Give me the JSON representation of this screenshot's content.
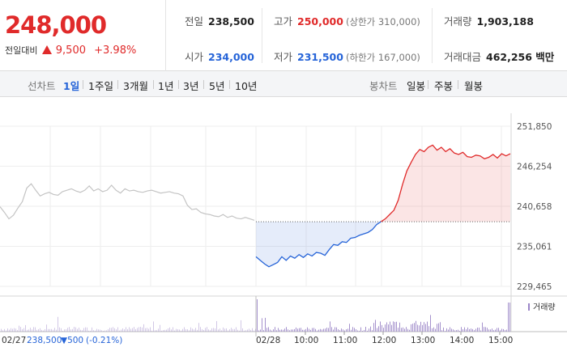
{
  "summary": {
    "current_price": "248,000",
    "change_label": "전일대비",
    "change_value": "9,500",
    "change_pct": "+3.98%",
    "prev_close": {
      "label": "전일",
      "value": "238,500"
    },
    "high": {
      "label": "고가",
      "value": "250,000",
      "sub": "(상한가 310,000)"
    },
    "volume": {
      "label": "거래량",
      "value": "1,903,188"
    },
    "open": {
      "label": "시가",
      "value": "234,000"
    },
    "low": {
      "label": "저가",
      "value": "231,500",
      "sub": "(하한가 167,000)"
    },
    "trade_amount": {
      "label": "거래대금",
      "value": "462,256 백만"
    }
  },
  "period_bar": {
    "line_chart_label": "선차트",
    "line_periods": [
      "1일",
      "1주일",
      "3개월",
      "1년",
      "3년",
      "5년",
      "10년"
    ],
    "active_period": "1일",
    "candle_chart_label": "봉차트",
    "candle_periods": [
      "일봉",
      "주봉",
      "월봉"
    ]
  },
  "colors": {
    "up": "#e02a2a",
    "down": "#2664d8",
    "prev_day_line": "#c4c4c4",
    "volume_bar": "#9b86c8"
  },
  "chart_data": {
    "type": "line",
    "y_ticks": [
      "251,850",
      "246,254",
      "240,658",
      "235,061",
      "229,465"
    ],
    "ylim": [
      229465,
      251850
    ],
    "baseline": 238500,
    "prev_day_footer": {
      "date": "02/27",
      "close": "238,500",
      "change": "▼500",
      "change_pct": "(-0.21%)"
    },
    "today_date": "02/28",
    "x_time_labels": [
      "10:00",
      "11:00",
      "12:00",
      "13:00",
      "14:00",
      "15:00"
    ],
    "volume_legend": "거래량",
    "prev_day_series": {
      "name": "02/27",
      "values": [
        240600,
        239800,
        238900,
        239400,
        240400,
        241300,
        243200,
        243800,
        242900,
        242100,
        242400,
        242600,
        242300,
        242200,
        242700,
        242900,
        243100,
        242800,
        242600,
        242900,
        243500,
        242800,
        243100,
        242700,
        242900,
        243600,
        242900,
        242500,
        243100,
        242800,
        242900,
        242700,
        242600,
        242800,
        242900,
        242700,
        242500,
        242600,
        242700,
        242500,
        242400,
        242100,
        240800,
        240200,
        240300,
        239800,
        239600,
        239500,
        239300,
        239200,
        239500,
        239100,
        239300,
        239000,
        238900,
        239100,
        238900,
        238700
      ]
    },
    "today_series": {
      "name": "02/28",
      "values": [
        233600,
        233100,
        232600,
        232200,
        232500,
        232800,
        233600,
        233100,
        233700,
        233400,
        233900,
        233500,
        234000,
        233700,
        234200,
        234100,
        233800,
        234600,
        235300,
        235200,
        235700,
        235600,
        236200,
        236300,
        236600,
        236800,
        237000,
        237400,
        238100,
        238500,
        238900,
        239500,
        240100,
        241500,
        243700,
        245600,
        246800,
        247900,
        248600,
        248300,
        248900,
        249200,
        248500,
        248900,
        248300,
        248700,
        248100,
        247900,
        248200,
        247600,
        247500,
        247800,
        247700,
        247300,
        247500,
        247900,
        247400,
        248000,
        247700,
        248000
      ]
    }
  }
}
